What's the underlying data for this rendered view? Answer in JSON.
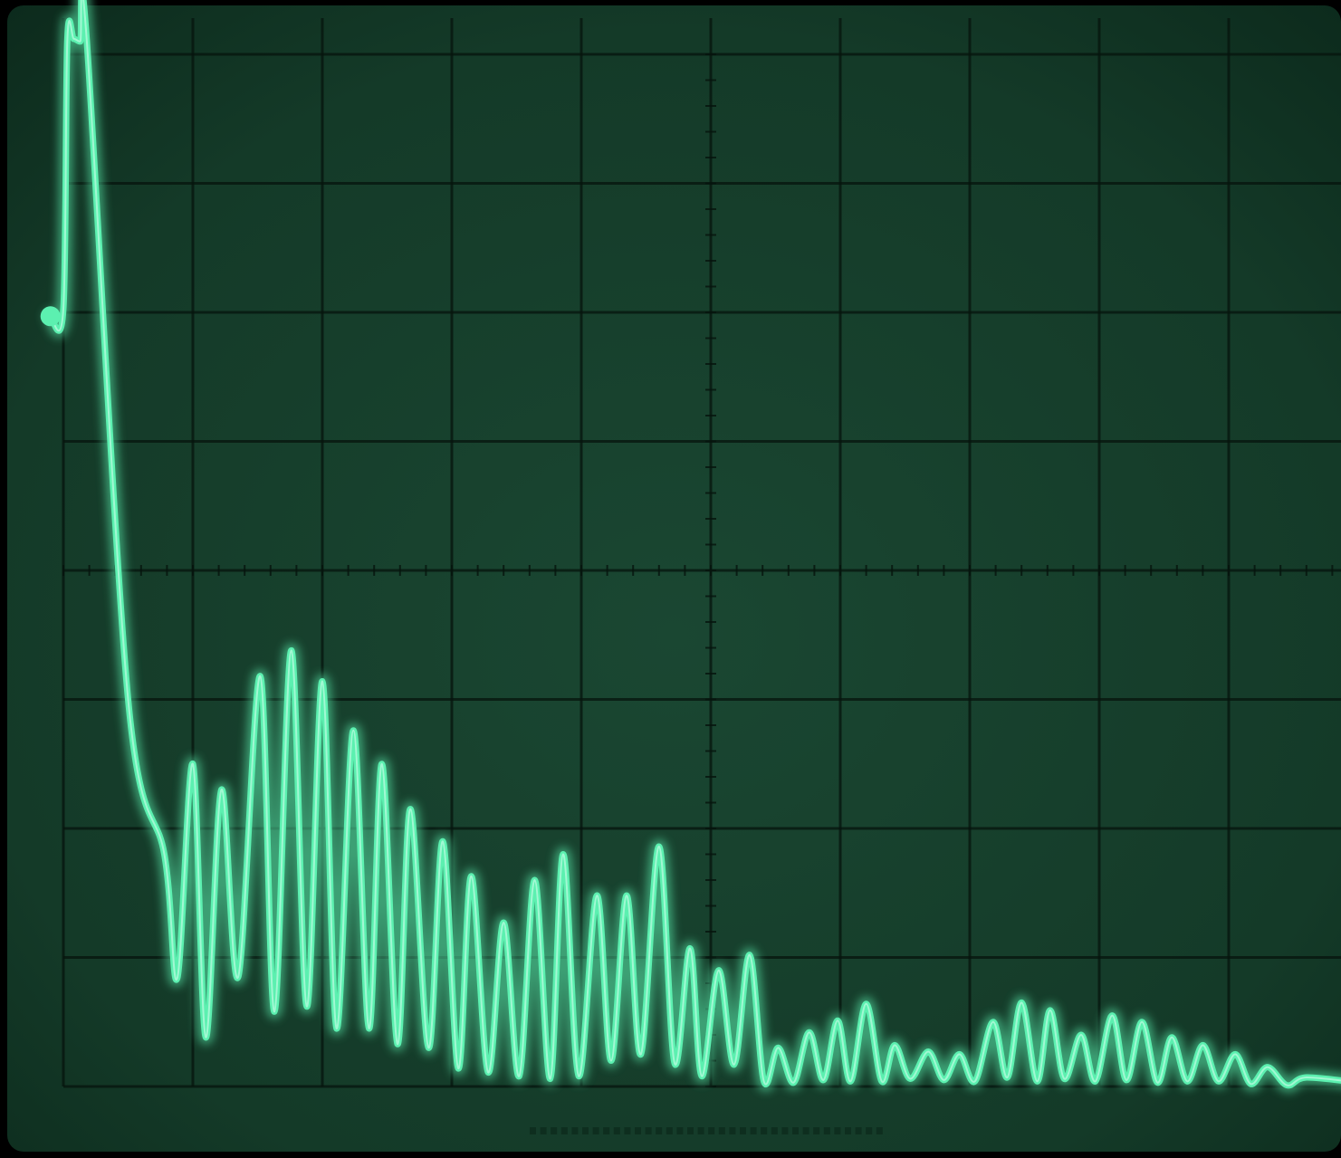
{
  "chart_data": {
    "type": "line",
    "title": "",
    "xlabel": "",
    "ylabel": "",
    "grid": true,
    "xlim": [
      0,
      10
    ],
    "ylim": [
      -4,
      4
    ],
    "x_divisions": 10,
    "y_divisions": 8,
    "series": [
      {
        "color": "#5cf0b0",
        "points": [
          [
            -0.1,
            1.97
          ],
          [
            0.0,
            2.03
          ],
          [
            0.03,
            4.1
          ],
          [
            0.08,
            4.12
          ],
          [
            0.13,
            4.1
          ],
          [
            0.18,
            4.12
          ],
          [
            0.5,
            -1.0
          ],
          [
            0.78,
            -2.2
          ],
          [
            0.88,
            -3.16
          ],
          [
            1.0,
            -1.5
          ],
          [
            1.1,
            -3.62
          ],
          [
            1.22,
            -1.7
          ],
          [
            1.35,
            -3.15
          ],
          [
            1.52,
            -0.82
          ],
          [
            1.63,
            -3.42
          ],
          [
            1.76,
            -0.62
          ],
          [
            1.88,
            -3.38
          ],
          [
            2.0,
            -0.86
          ],
          [
            2.11,
            -3.55
          ],
          [
            2.24,
            -1.24
          ],
          [
            2.36,
            -3.55
          ],
          [
            2.46,
            -1.5
          ],
          [
            2.58,
            -3.67
          ],
          [
            2.68,
            -1.85
          ],
          [
            2.82,
            -3.7
          ],
          [
            2.93,
            -2.1
          ],
          [
            3.05,
            -3.86
          ],
          [
            3.15,
            -2.37
          ],
          [
            3.28,
            -3.89
          ],
          [
            3.4,
            -2.73
          ],
          [
            3.52,
            -3.92
          ],
          [
            3.64,
            -2.4
          ],
          [
            3.76,
            -3.94
          ],
          [
            3.86,
            -2.2
          ],
          [
            3.98,
            -3.92
          ],
          [
            4.12,
            -2.52
          ],
          [
            4.23,
            -3.8
          ],
          [
            4.35,
            -2.52
          ],
          [
            4.46,
            -3.75
          ],
          [
            4.6,
            -2.14
          ],
          [
            4.72,
            -3.82
          ],
          [
            4.84,
            -2.93
          ],
          [
            4.93,
            -3.92
          ],
          [
            5.06,
            -3.1
          ],
          [
            5.18,
            -3.83
          ],
          [
            5.3,
            -2.98
          ],
          [
            5.41,
            -3.96
          ],
          [
            5.52,
            -3.7
          ],
          [
            5.64,
            -3.97
          ],
          [
            5.76,
            -3.58
          ],
          [
            5.87,
            -3.95
          ],
          [
            5.98,
            -3.49
          ],
          [
            6.08,
            -3.96
          ],
          [
            6.2,
            -3.36
          ],
          [
            6.32,
            -3.96
          ],
          [
            6.42,
            -3.68
          ],
          [
            6.54,
            -3.94
          ],
          [
            6.68,
            -3.73
          ],
          [
            6.8,
            -3.95
          ],
          [
            6.92,
            -3.75
          ],
          [
            7.04,
            -3.96
          ],
          [
            7.18,
            -3.5
          ],
          [
            7.29,
            -3.93
          ],
          [
            7.4,
            -3.35
          ],
          [
            7.52,
            -3.96
          ],
          [
            7.62,
            -3.41
          ],
          [
            7.73,
            -3.94
          ],
          [
            7.86,
            -3.6
          ],
          [
            7.97,
            -3.96
          ],
          [
            8.1,
            -3.45
          ],
          [
            8.21,
            -3.95
          ],
          [
            8.33,
            -3.5
          ],
          [
            8.45,
            -3.97
          ],
          [
            8.56,
            -3.62
          ],
          [
            8.68,
            -3.96
          ],
          [
            8.8,
            -3.68
          ],
          [
            8.92,
            -3.96
          ],
          [
            9.05,
            -3.75
          ],
          [
            9.17,
            -3.98
          ],
          [
            9.3,
            -3.85
          ],
          [
            9.45,
            -3.99
          ],
          [
            9.6,
            -3.93
          ],
          [
            10.0,
            -3.97
          ]
        ]
      }
    ]
  },
  "colors": {
    "screen": "#143a28",
    "screen_edge": "#0a2418",
    "grid": "#06140d",
    "trace": "#5cf0b0",
    "trace_core": "#dcfff0"
  }
}
